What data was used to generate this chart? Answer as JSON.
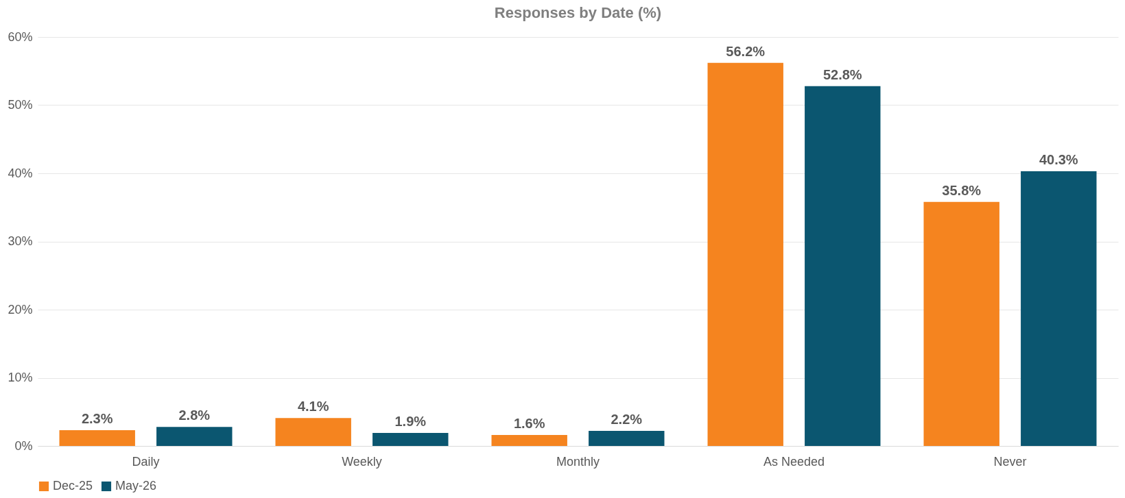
{
  "chart_data": {
    "type": "bar",
    "title": "Responses by Date (%)",
    "categories": [
      "Daily",
      "Weekly",
      "Monthly",
      "As Needed",
      "Never"
    ],
    "series": [
      {
        "name": "Dec-25",
        "color": "#f5841f",
        "values": [
          2.3,
          4.1,
          1.6,
          56.2,
          35.8
        ],
        "value_labels": [
          "2.3%",
          "4.1%",
          "1.6%",
          "56.2%",
          "35.8%"
        ]
      },
      {
        "name": "May-26",
        "color": "#0b5670",
        "values": [
          2.8,
          1.9,
          2.2,
          52.8,
          40.3
        ],
        "value_labels": [
          "2.8%",
          "1.9%",
          "2.2%",
          "52.8%",
          "40.3%"
        ]
      }
    ],
    "ylim": [
      0,
      60
    ],
    "yticks": [
      {
        "value": 0,
        "label": "0%"
      },
      {
        "value": 10,
        "label": "10%"
      },
      {
        "value": 20,
        "label": "20%"
      },
      {
        "value": 30,
        "label": "30%"
      },
      {
        "value": 40,
        "label": "40%"
      },
      {
        "value": 50,
        "label": "50%"
      },
      {
        "value": 60,
        "label": "60%"
      }
    ],
    "grid": "y",
    "legend": "bottom"
  }
}
